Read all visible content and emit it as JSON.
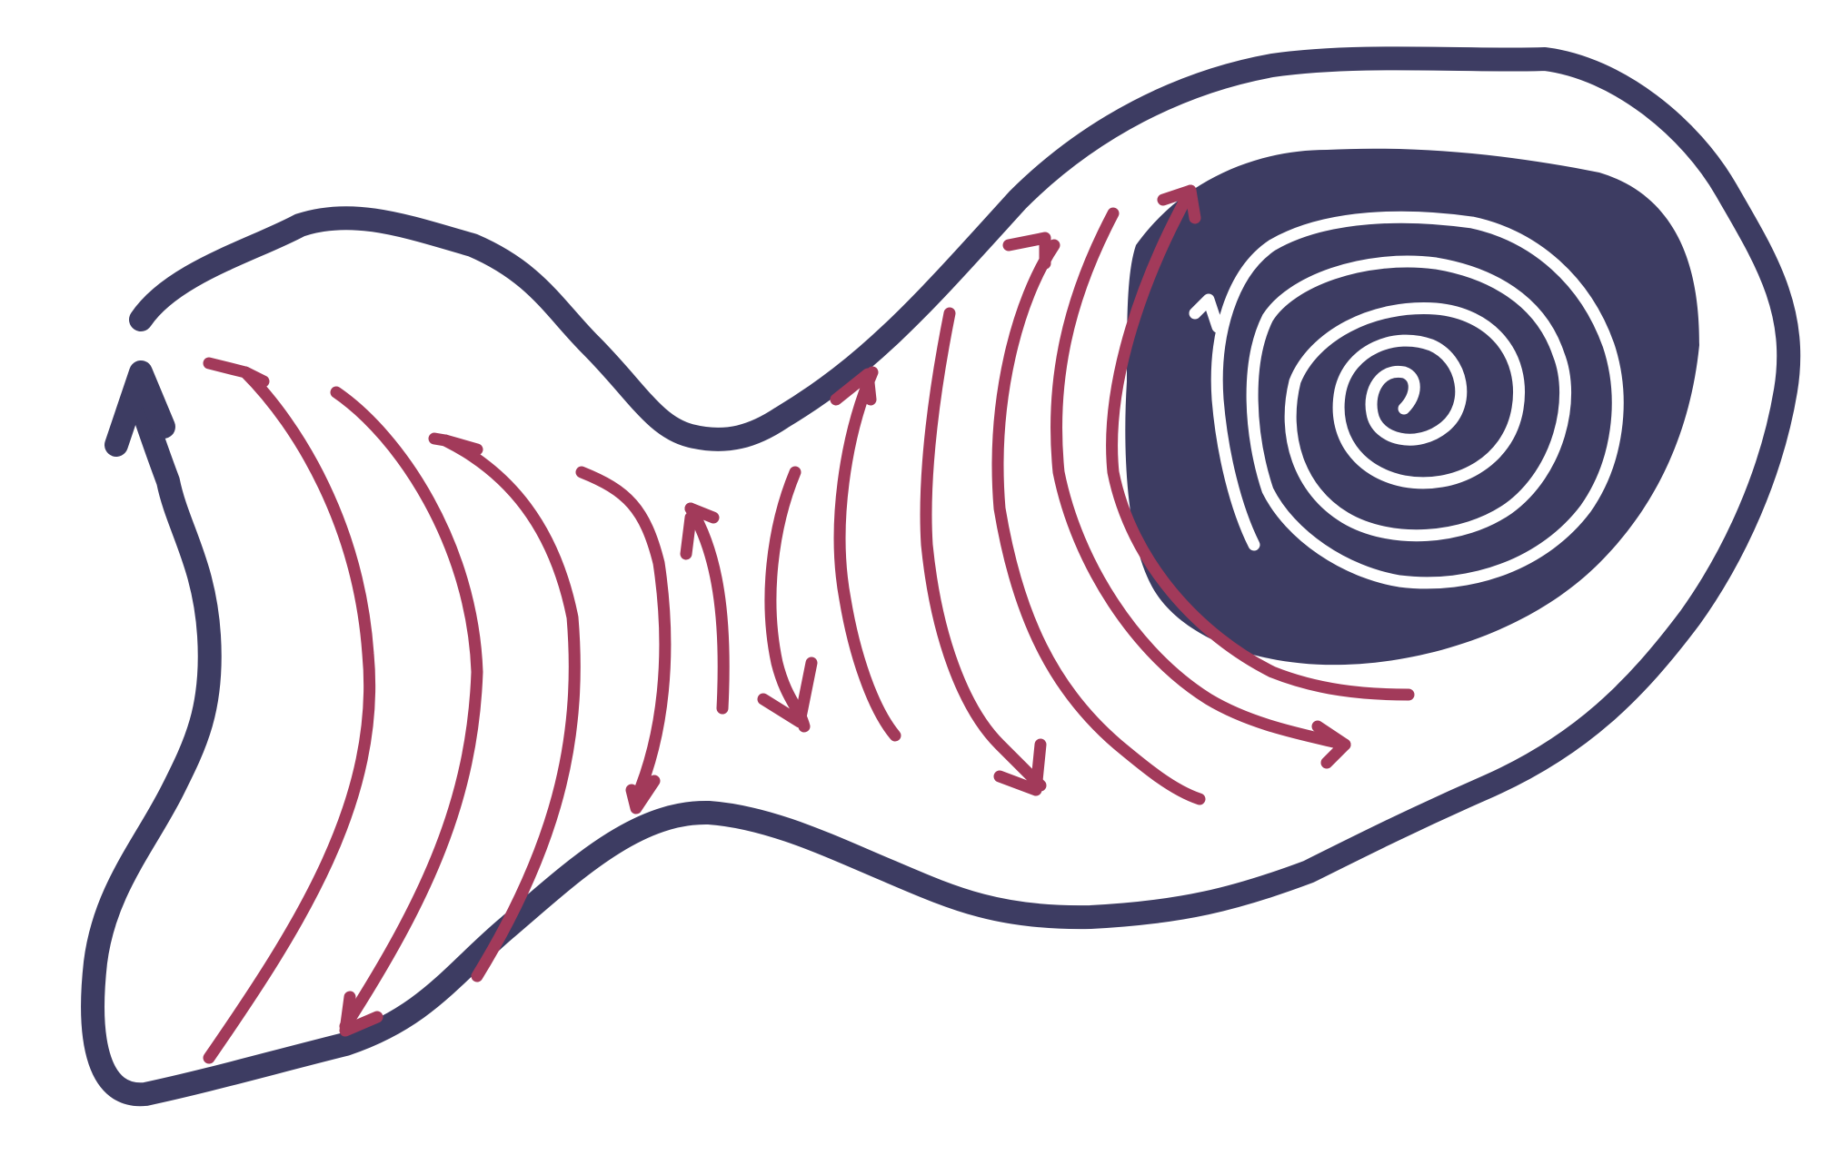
{
  "figure": {
    "kind": "hand-drawn flow diagram",
    "colors": {
      "background": "#ffffff",
      "outline": "#3d3c62",
      "flow_arrows": "#a23a5a",
      "vortex_fill": "#3d3c62",
      "spiral": "#ffffff"
    },
    "elements": {
      "outline": "outer-boundary",
      "vortex": "dark-vortex-core",
      "spiral": "white-spiral",
      "arrows": "curved-flow-arrows"
    }
  }
}
